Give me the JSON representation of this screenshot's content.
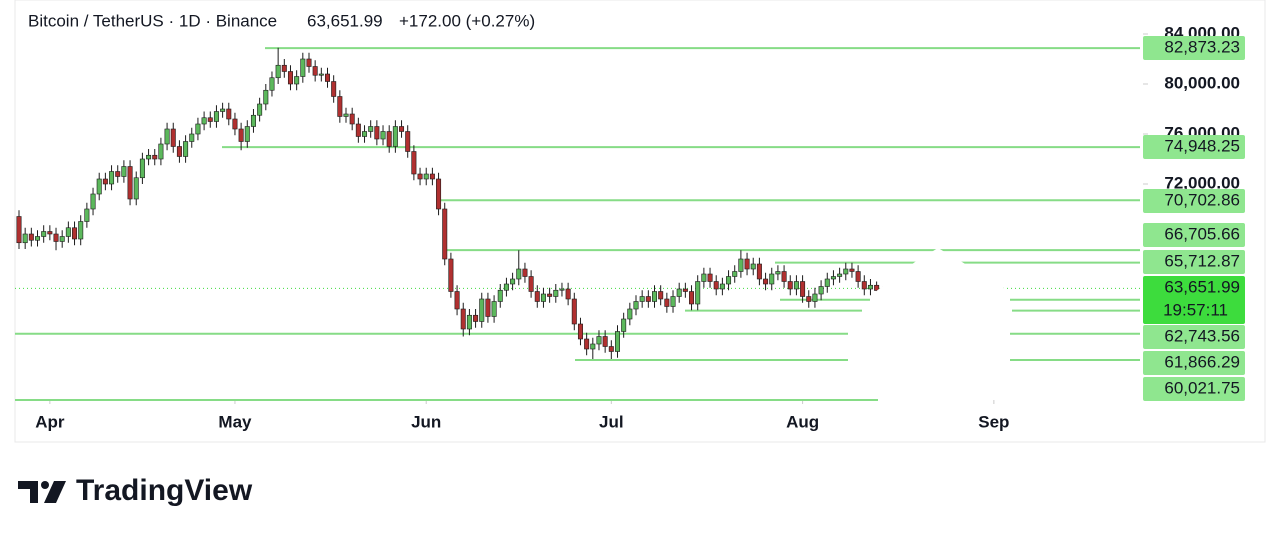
{
  "chart_data": {
    "type": "candlestick",
    "title": "Bitcoin / TetherUS · 1D · Binance",
    "last_price": {
      "value": 63651.99,
      "label": "63,651.99"
    },
    "change": "+172.00 (+0.27%)",
    "countdown": "19:57:11",
    "brand": "TradingView",
    "up_color": "#5cb85c",
    "down_color": "#b03030",
    "line_color": "#86dc86",
    "label_color": "#8fe68f",
    "last_color": "#3ddc3d",
    "ylim": [
      54720,
      86720
    ],
    "yticks": [
      {
        "value": 72000,
        "label": "72,000.00"
      },
      {
        "value": 76000,
        "label": "76,000.00"
      },
      {
        "value": 80000,
        "label": "80,000.00"
      },
      {
        "value": 84000,
        "label": "84,000.00"
      }
    ],
    "xlim": [
      -0.1,
      200
    ],
    "xticks": [
      {
        "value": 5,
        "label": "Apr"
      },
      {
        "value": 35,
        "label": "May"
      },
      {
        "value": 66,
        "label": "Jun"
      },
      {
        "value": 96,
        "label": "Jul"
      },
      {
        "value": 127,
        "label": "Aug"
      },
      {
        "value": 158,
        "label": "Sep"
      }
    ],
    "hlines": [
      {
        "value": 82873.23,
        "label": "82,873.23"
      },
      {
        "value": 74948.25,
        "label": "74,948.25"
      },
      {
        "value": 70702.86,
        "label": "70,702.86"
      },
      {
        "value": 66705.66,
        "label": "66,705.66"
      },
      {
        "value": 65712.87,
        "label": "65,712.87"
      },
      {
        "value": 62743.56,
        "label": "62,743.56"
      },
      {
        "value": 61866.29,
        "label": "61,866.29"
      },
      {
        "value": 60021.75,
        "label": "60,021.75"
      }
    ],
    "ohlc": [
      [
        69400,
        69900,
        66800,
        67300
      ],
      [
        67300,
        68500,
        66800,
        68000
      ],
      [
        68000,
        68500,
        67000,
        67500
      ],
      [
        67500,
        68300,
        67000,
        67800
      ],
      [
        67800,
        68700,
        67300,
        68200
      ],
      [
        68200,
        68700,
        67500,
        68000
      ],
      [
        68000,
        68500,
        66700,
        67400
      ],
      [
        67400,
        68300,
        66900,
        67800
      ],
      [
        67800,
        69000,
        67300,
        68500
      ],
      [
        68500,
        69000,
        67100,
        67600
      ],
      [
        67600,
        69500,
        67100,
        69000
      ],
      [
        69000,
        70500,
        68500,
        70000
      ],
      [
        70000,
        71700,
        69500,
        71200
      ],
      [
        71200,
        72900,
        70700,
        72400
      ],
      [
        72400,
        72900,
        71500,
        72000
      ],
      [
        72000,
        73500,
        71500,
        73000
      ],
      [
        73000,
        73500,
        72100,
        72600
      ],
      [
        72600,
        73900,
        72100,
        73400
      ],
      [
        73400,
        73900,
        70300,
        70800
      ],
      [
        70800,
        73000,
        70300,
        72500
      ],
      [
        72500,
        74500,
        72000,
        74000
      ],
      [
        74000,
        74800,
        73500,
        74300
      ],
      [
        74300,
        74800,
        73500,
        74000
      ],
      [
        74000,
        75700,
        73500,
        75200
      ],
      [
        75200,
        76900,
        74700,
        76400
      ],
      [
        76400,
        76900,
        74500,
        75000
      ],
      [
        75000,
        75500,
        73700,
        74200
      ],
      [
        74200,
        75900,
        73700,
        75400
      ],
      [
        75400,
        76500,
        74900,
        76000
      ],
      [
        76000,
        77300,
        75500,
        76800
      ],
      [
        76800,
        77800,
        76300,
        77300
      ],
      [
        77300,
        77800,
        76500,
        77000
      ],
      [
        77000,
        78300,
        76500,
        77800
      ],
      [
        77800,
        78500,
        77300,
        78000
      ],
      [
        78000,
        78500,
        76700,
        77200
      ],
      [
        77200,
        77700,
        75900,
        76400
      ],
      [
        76400,
        76900,
        74700,
        75400
      ],
      [
        75400,
        77100,
        74900,
        76600
      ],
      [
        76600,
        78000,
        76100,
        77500
      ],
      [
        77500,
        78900,
        77000,
        78400
      ],
      [
        78400,
        80000,
        77900,
        79500
      ],
      [
        79500,
        81000,
        79000,
        80500
      ],
      [
        80500,
        82900,
        80000,
        81500
      ],
      [
        81500,
        82000,
        80500,
        81000
      ],
      [
        81000,
        81500,
        79500,
        80000
      ],
      [
        80000,
        81100,
        79500,
        80600
      ],
      [
        80600,
        82500,
        80100,
        82000
      ],
      [
        82000,
        82500,
        80900,
        81400
      ],
      [
        81400,
        81900,
        80200,
        80700
      ],
      [
        80700,
        81300,
        80200,
        80800
      ],
      [
        80800,
        81300,
        79700,
        80200
      ],
      [
        80200,
        80700,
        78500,
        79000
      ],
      [
        79000,
        79500,
        76900,
        77400
      ],
      [
        77400,
        78100,
        76900,
        77600
      ],
      [
        77600,
        78100,
        76300,
        76800
      ],
      [
        76800,
        77300,
        75300,
        75800
      ],
      [
        75800,
        76700,
        75300,
        76200
      ],
      [
        76200,
        77100,
        75700,
        76600
      ],
      [
        76600,
        77100,
        75100,
        75600
      ],
      [
        75600,
        76700,
        75100,
        76200
      ],
      [
        76200,
        76700,
        74500,
        75000
      ],
      [
        75000,
        77100,
        74500,
        76600
      ],
      [
        76600,
        77100,
        75700,
        76200
      ],
      [
        76200,
        76700,
        74100,
        74600
      ],
      [
        74600,
        75100,
        72300,
        72800
      ],
      [
        72800,
        73300,
        71900,
        72400
      ],
      [
        72400,
        73300,
        71900,
        72800
      ],
      [
        72800,
        73300,
        71900,
        72400
      ],
      [
        72400,
        72900,
        69500,
        70000
      ],
      [
        70000,
        70500,
        65500,
        66000
      ],
      [
        66000,
        66500,
        62900,
        63400
      ],
      [
        63400,
        63900,
        61500,
        62000
      ],
      [
        62000,
        62500,
        59800,
        60400
      ],
      [
        60400,
        62000,
        59900,
        61500
      ],
      [
        61500,
        62000,
        60500,
        61000
      ],
      [
        61000,
        63300,
        60500,
        62800
      ],
      [
        62800,
        63300,
        60900,
        61400
      ],
      [
        61400,
        63100,
        60900,
        62600
      ],
      [
        62600,
        64000,
        62100,
        63500
      ],
      [
        63500,
        64500,
        63000,
        64000
      ],
      [
        64000,
        64900,
        63500,
        64400
      ],
      [
        64400,
        66700,
        63900,
        65200
      ],
      [
        65200,
        65700,
        64100,
        64600
      ],
      [
        64600,
        65100,
        62900,
        63400
      ],
      [
        63400,
        63900,
        62100,
        62600
      ],
      [
        62600,
        63700,
        62100,
        63200
      ],
      [
        63200,
        63700,
        62500,
        63000
      ],
      [
        63000,
        64000,
        62500,
        63500
      ],
      [
        63500,
        64100,
        63000,
        63600
      ],
      [
        63600,
        64100,
        62300,
        62800
      ],
      [
        62800,
        63300,
        60300,
        60800
      ],
      [
        60800,
        61300,
        59100,
        59600
      ],
      [
        59600,
        60100,
        58300,
        58800
      ],
      [
        58800,
        59700,
        58000,
        59200
      ],
      [
        59200,
        60300,
        58700,
        59800
      ],
      [
        59800,
        60300,
        58500,
        59000
      ],
      [
        59000,
        59500,
        57900,
        58600
      ],
      [
        58600,
        60700,
        58100,
        60200
      ],
      [
        60200,
        61700,
        59700,
        61200
      ],
      [
        61200,
        62500,
        60700,
        62000
      ],
      [
        62000,
        63100,
        61500,
        62600
      ],
      [
        62600,
        63500,
        62100,
        63000
      ],
      [
        63000,
        63500,
        62100,
        62600
      ],
      [
        62600,
        63900,
        62100,
        63400
      ],
      [
        63400,
        63900,
        62300,
        62800
      ],
      [
        62800,
        63300,
        61700,
        62200
      ],
      [
        62200,
        63500,
        61700,
        63000
      ],
      [
        63000,
        64100,
        62500,
        63600
      ],
      [
        63600,
        64100,
        62900,
        63400
      ],
      [
        63400,
        63900,
        61900,
        62400
      ],
      [
        62400,
        64700,
        61900,
        64200
      ],
      [
        64200,
        65300,
        63700,
        64800
      ],
      [
        64800,
        65300,
        63700,
        64200
      ],
      [
        64200,
        64700,
        63100,
        63600
      ],
      [
        63600,
        64500,
        63100,
        64000
      ],
      [
        64000,
        65100,
        63500,
        64600
      ],
      [
        64600,
        65500,
        64100,
        65000
      ],
      [
        65000,
        66700,
        64500,
        66000
      ],
      [
        66000,
        66500,
        64700,
        65200
      ],
      [
        65200,
        66100,
        64700,
        65600
      ],
      [
        65600,
        66100,
        63900,
        64400
      ],
      [
        64400,
        64900,
        63500,
        64000
      ],
      [
        64000,
        65300,
        63500,
        64800
      ],
      [
        64800,
        65500,
        64300,
        65000
      ],
      [
        65000,
        65500,
        63700,
        64200
      ],
      [
        64200,
        64700,
        63100,
        63600
      ],
      [
        63600,
        64700,
        63100,
        64200
      ],
      [
        64200,
        64700,
        62500,
        63000
      ],
      [
        63000,
        63500,
        62100,
        62600
      ],
      [
        62600,
        63700,
        62100,
        63200
      ],
      [
        63200,
        64300,
        62700,
        63800
      ],
      [
        63800,
        64900,
        63300,
        64400
      ],
      [
        64400,
        65100,
        63900,
        64600
      ],
      [
        64600,
        65300,
        64100,
        64800
      ],
      [
        64800,
        65700,
        64300,
        65200
      ],
      [
        65200,
        65700,
        64500,
        65000
      ],
      [
        65000,
        65500,
        63700,
        64200
      ],
      [
        64200,
        64700,
        63100,
        63600
      ],
      [
        63600,
        64400,
        63100,
        63900
      ],
      [
        63900,
        64200,
        63200,
        63480
      ],
      [
        63480,
        63800,
        63300,
        63652
      ]
    ]
  }
}
